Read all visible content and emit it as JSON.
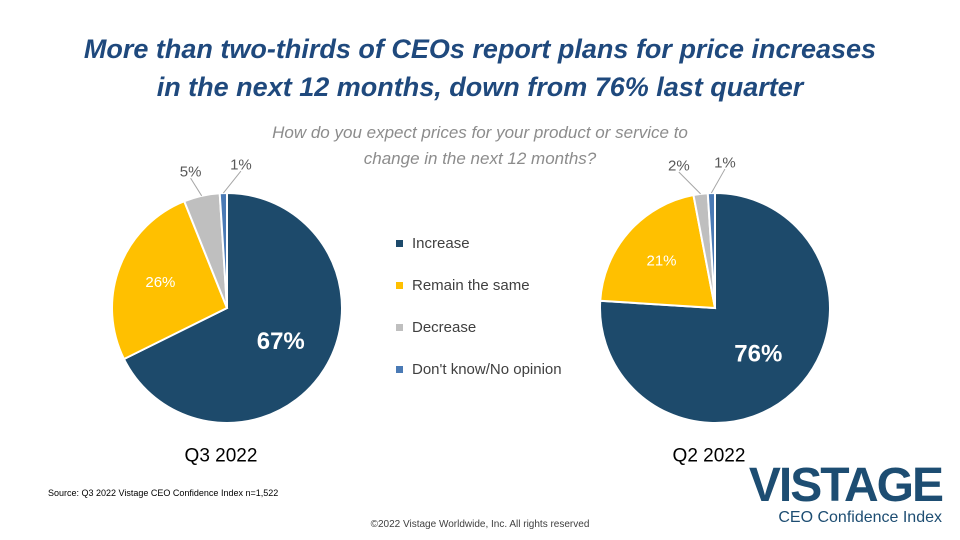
{
  "title": {
    "line1": "More than two-thirds of CEOs report plans for price increases",
    "line2": "in the next 12 months, down from 76% last quarter"
  },
  "subtitle": {
    "line1": "How do you expect prices for your product or service to",
    "line2": "change in the next 12 months?"
  },
  "legend": [
    {
      "label": "Increase",
      "color": "#1d4a6b"
    },
    {
      "label": "Remain the same",
      "color": "#ffc000"
    },
    {
      "label": "Decrease",
      "color": "#bfbfbf"
    },
    {
      "label": "Don't know/No opinion",
      "color": "#4a7ab5"
    }
  ],
  "chart_data": [
    {
      "type": "pie",
      "title": "Q3 2022",
      "categories": [
        "Increase",
        "Remain the same",
        "Decrease",
        "Don't know/No opinion"
      ],
      "values": [
        67,
        26,
        5,
        1
      ],
      "labels": [
        "67%",
        "26%",
        "5%",
        "1%"
      ],
      "colors": [
        "#1d4a6b",
        "#ffc000",
        "#bfbfbf",
        "#4a7ab5"
      ]
    },
    {
      "type": "pie",
      "title": "Q2 2022",
      "categories": [
        "Increase",
        "Remain the same",
        "Decrease",
        "Don't know/No opinion"
      ],
      "values": [
        76,
        21,
        2,
        1
      ],
      "labels": [
        "76%",
        "21%",
        "2%",
        "1%"
      ],
      "colors": [
        "#1d4a6b",
        "#ffc000",
        "#bfbfbf",
        "#4a7ab5"
      ]
    }
  ],
  "source": "Source: Q3 2022 Vistage CEO Confidence Index n=1,522",
  "copyright": "©2022 Vistage Worldwide, Inc. All rights reserved",
  "brand": {
    "name": "VISTAGE",
    "tagline": "CEO Confidence Index"
  }
}
